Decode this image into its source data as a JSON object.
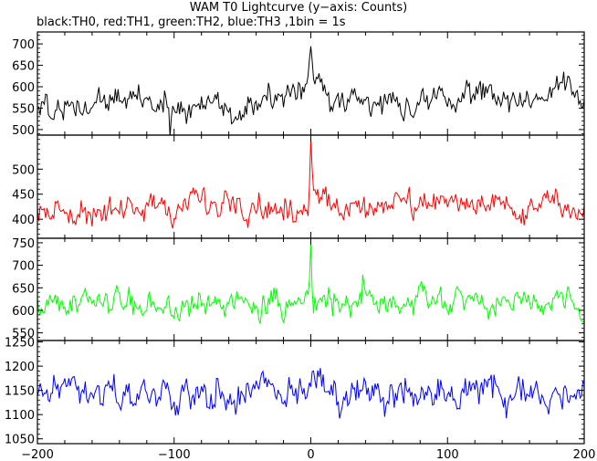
{
  "chart_data": {
    "type": "line",
    "title": "WAM T0 Lightcurve (y−axis: Counts)",
    "subtitle": "black:TH0, red:TH1, green:TH2, blue:TH3 ,1bin = 1s",
    "xlabel": "",
    "ylabel": "",
    "xlim": [
      -200,
      200
    ],
    "x_ticks": [
      -200,
      -100,
      0,
      100,
      200
    ],
    "grid": false,
    "legend": "none",
    "panels": [
      {
        "name": "TH0",
        "color": "#000000",
        "ylim": [
          487,
          728
        ],
        "y_ticks": [
          500,
          550,
          600,
          650,
          700
        ],
        "baseline": [
          [
            -200,
            557
          ],
          [
            -150,
            562
          ],
          [
            -100,
            557
          ],
          [
            -50,
            565
          ],
          [
            -20,
            568
          ],
          [
            20,
            565
          ],
          [
            100,
            572
          ],
          [
            160,
            575
          ],
          [
            200,
            580
          ]
        ],
        "noise": 26,
        "features": [
          {
            "x": -7,
            "width": 3,
            "amp": 25
          },
          {
            "x": -2,
            "width": 1.2,
            "amp": 40
          },
          {
            "x": 0,
            "width": 0.8,
            "amp": 120
          },
          {
            "x": 3,
            "width": 2,
            "amp": 60
          },
          {
            "x": 8,
            "width": 3,
            "amp": 20
          },
          {
            "x": -103,
            "width": 0.6,
            "amp": -60
          }
        ]
      },
      {
        "name": "TH1",
        "color": "#ff0000",
        "ylim": [
          362,
          568
        ],
        "y_ticks": [
          400,
          450,
          500
        ],
        "baseline": [
          [
            -200,
            418
          ],
          [
            -150,
            425
          ],
          [
            -100,
            423
          ],
          [
            -50,
            428
          ],
          [
            0,
            425
          ],
          [
            50,
            430
          ],
          [
            100,
            432
          ],
          [
            150,
            430
          ],
          [
            200,
            432
          ]
        ],
        "noise": 22,
        "features": [
          {
            "x": 0,
            "width": 0.7,
            "amp": 135
          },
          {
            "x": 2,
            "width": 1.5,
            "amp": 30
          }
        ]
      },
      {
        "name": "TH2",
        "color": "#00ff00",
        "ylim": [
          533,
          760
        ],
        "y_ticks": [
          550,
          600,
          650,
          700,
          750
        ],
        "baseline": [
          [
            -200,
            612
          ],
          [
            -150,
            615
          ],
          [
            -100,
            612
          ],
          [
            -50,
            618
          ],
          [
            0,
            613
          ],
          [
            50,
            615
          ],
          [
            100,
            612
          ],
          [
            150,
            616
          ],
          [
            200,
            618
          ]
        ],
        "noise": 24,
        "features": [
          {
            "x": 0,
            "width": 0.7,
            "amp": 140
          },
          {
            "x": 38,
            "width": 0.6,
            "amp": 60
          }
        ]
      },
      {
        "name": "TH3",
        "color": "#0000ff",
        "ylim": [
          1040,
          1253
        ],
        "y_ticks": [
          1050,
          1100,
          1150,
          1200,
          1250
        ],
        "baseline": [
          [
            -200,
            1140
          ],
          [
            -150,
            1143
          ],
          [
            -100,
            1142
          ],
          [
            -50,
            1148
          ],
          [
            0,
            1145
          ],
          [
            50,
            1148
          ],
          [
            100,
            1142
          ],
          [
            150,
            1145
          ],
          [
            200,
            1143
          ]
        ],
        "noise": 28,
        "features": []
      }
    ]
  }
}
